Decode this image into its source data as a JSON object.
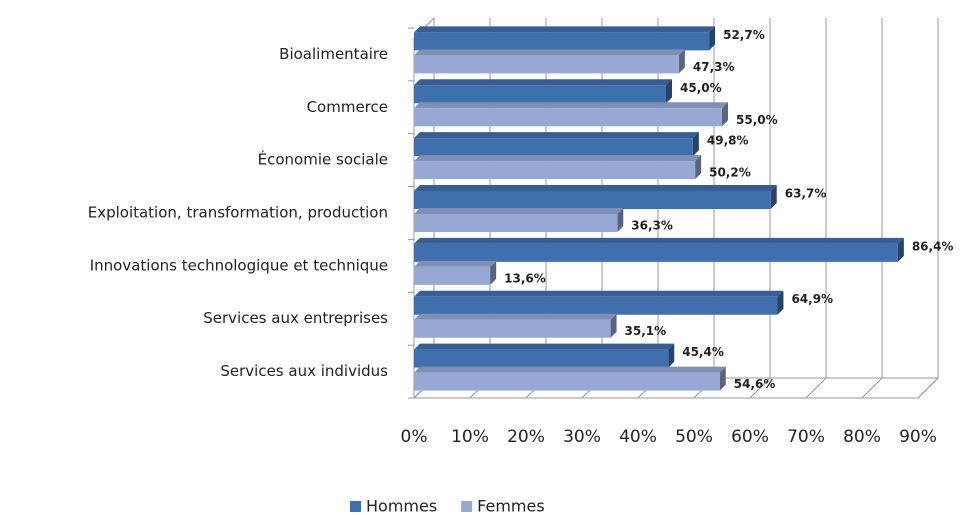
{
  "chart_data": {
    "type": "bar3d_horizontal",
    "categories": [
      "Bioalimentaire",
      "Commerce",
      "Économie sociale",
      "Exploitation, transformation, production",
      "Innovations technologique et technique",
      "Services aux entreprises",
      "Services aux individus"
    ],
    "series": [
      {
        "name": "Hommes",
        "color": "#3f6fad",
        "values": [
          52.7,
          45.0,
          49.8,
          63.7,
          86.4,
          64.9,
          45.4
        ],
        "value_labels": [
          "52,7%",
          "45,0%",
          "49,8%",
          "63,7%",
          "86,4%",
          "64,9%",
          "45,4%"
        ]
      },
      {
        "name": "Femmes",
        "color": "#95a9d4",
        "values": [
          47.3,
          55.0,
          50.2,
          36.3,
          13.6,
          35.1,
          54.6
        ],
        "value_labels": [
          "47,3%",
          "55,0%",
          "50,2%",
          "36,3%",
          "13,6%",
          "35,1%",
          "54,6%"
        ]
      }
    ],
    "xlim": [
      0,
      90
    ],
    "xticks": [
      {
        "value": 0,
        "label": "0%"
      },
      {
        "value": 10,
        "label": "10%"
      },
      {
        "value": 20,
        "label": "20%"
      },
      {
        "value": 30,
        "label": "30%"
      },
      {
        "value": 40,
        "label": "40%"
      },
      {
        "value": 50,
        "label": "50%"
      },
      {
        "value": 60,
        "label": "60%"
      },
      {
        "value": 70,
        "label": "70%"
      },
      {
        "value": 80,
        "label": "80%"
      },
      {
        "value": 90,
        "label": "90%"
      }
    ],
    "grid": true,
    "legend": "bottom"
  }
}
